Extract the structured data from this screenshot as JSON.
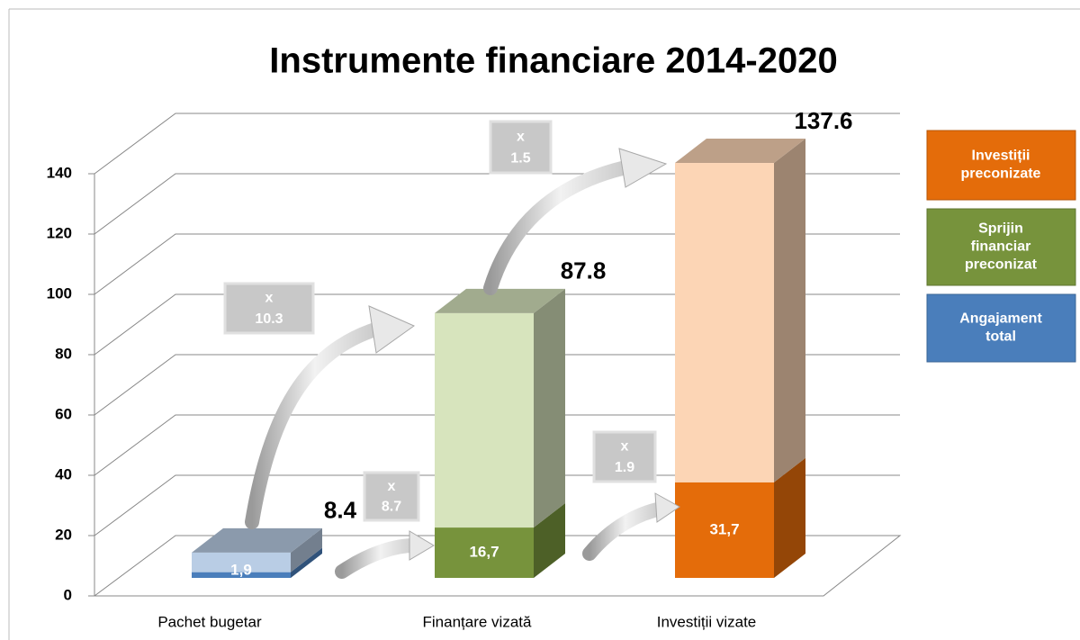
{
  "chart_data": {
    "type": "bar3d",
    "title": "Instrumente financiare 2014-2020",
    "categories": [
      "Pachet bugetar",
      "Finanțare vizată",
      "Investiții vizate"
    ],
    "values": [
      1.9,
      16.7,
      31.7
    ],
    "value_labels": [
      "1,9",
      "16,7",
      "31,7"
    ],
    "totals": [
      8.4,
      87.8,
      137.6
    ],
    "colors": [
      "#4a7ebb",
      "#77933c",
      "#e46c0a"
    ],
    "light_colors": [
      "#b9cde5",
      "#d7e4bd",
      "#fcd5b5"
    ],
    "ylim": [
      0,
      140
    ],
    "yticks": [
      0,
      20,
      40,
      60,
      80,
      100,
      120,
      140
    ],
    "grid": true,
    "legend_position": "right",
    "legend": [
      {
        "name": "Investiții preconizate",
        "color": "#e46c0a"
      },
      {
        "name": "Sprijin financiar preconizat",
        "color": "#77933c"
      },
      {
        "name": "Angajament total",
        "color": "#4a7ebb"
      }
    ],
    "multipliers": [
      [
        "x",
        "10.3"
      ],
      [
        "x",
        "8.7"
      ],
      [
        "x",
        "1.5"
      ],
      [
        "x",
        "1.9"
      ]
    ]
  }
}
